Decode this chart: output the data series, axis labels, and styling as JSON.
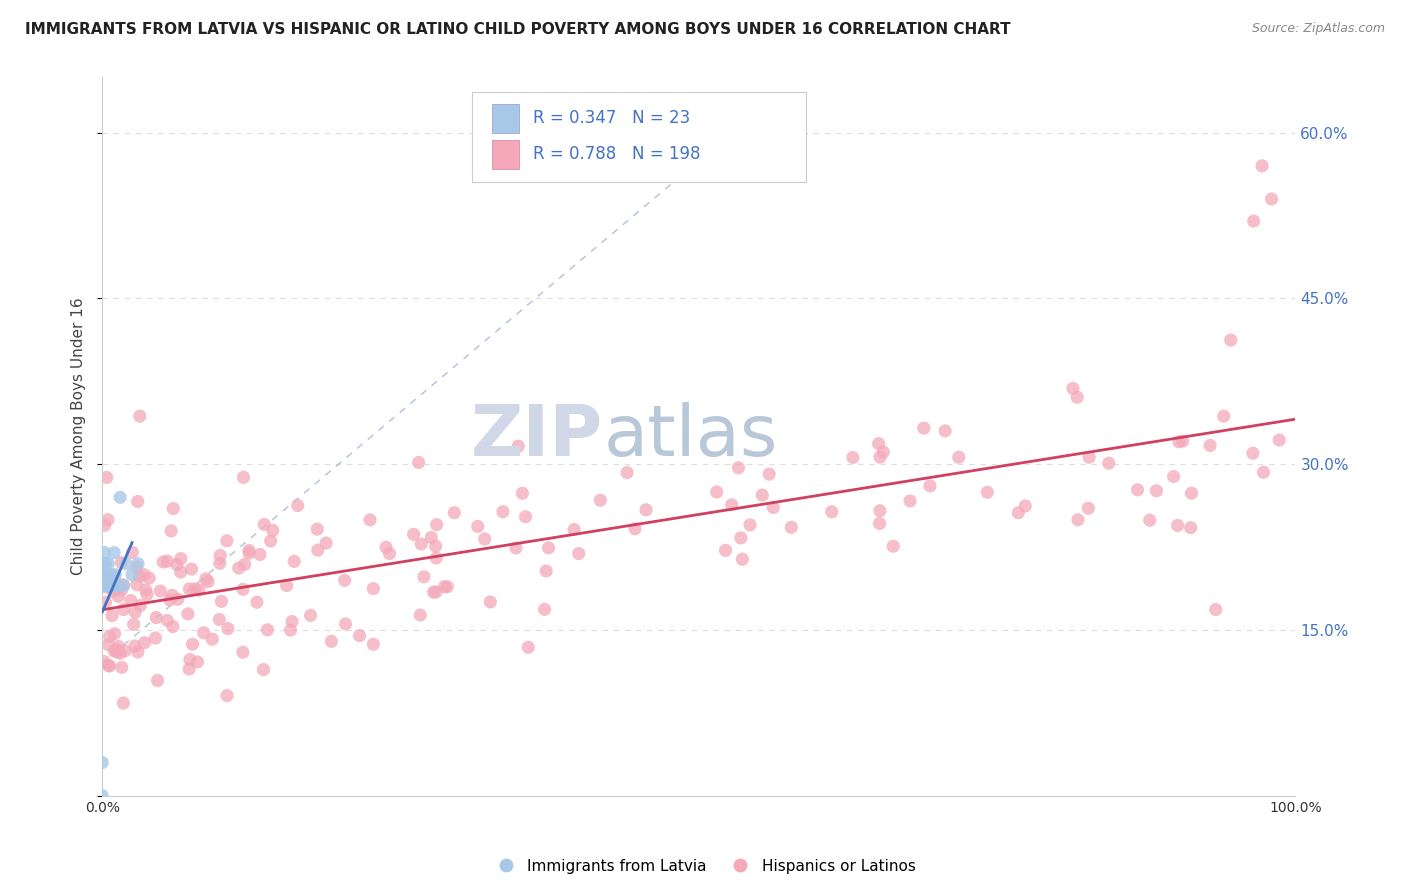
{
  "title": "IMMIGRANTS FROM LATVIA VS HISPANIC OR LATINO CHILD POVERTY AMONG BOYS UNDER 16 CORRELATION CHART",
  "source": "Source: ZipAtlas.com",
  "ylabel": "Child Poverty Among Boys Under 16",
  "xlim": [
    0,
    1.0
  ],
  "ylim": [
    0,
    0.65
  ],
  "x_tick_labels": [
    "0.0%",
    "",
    "",
    "",
    "",
    "",
    "",
    "",
    "",
    "",
    "100.0%"
  ],
  "y_tick_labels_right": [
    "",
    "15.0%",
    "30.0%",
    "45.0%",
    "60.0%"
  ],
  "blue_R": 0.347,
  "blue_N": 23,
  "pink_R": 0.788,
  "pink_N": 198,
  "blue_color": "#a8c8e8",
  "pink_color": "#f4a8b8",
  "blue_line_color": "#4472c4",
  "pink_line_color": "#d04060",
  "diag_line_color": "#a0b0cc",
  "watermark_ZIP": "ZIP",
  "watermark_atlas": "atlas",
  "legend_label_blue": "Immigrants from Latvia",
  "legend_label_pink": "Hispanics or Latinos",
  "legend_text_color": "#4472c4",
  "title_color": "#222222",
  "source_color": "#888888",
  "ylabel_color": "#444444",
  "grid_color": "#dddddd",
  "tick_color": "#4472c4"
}
